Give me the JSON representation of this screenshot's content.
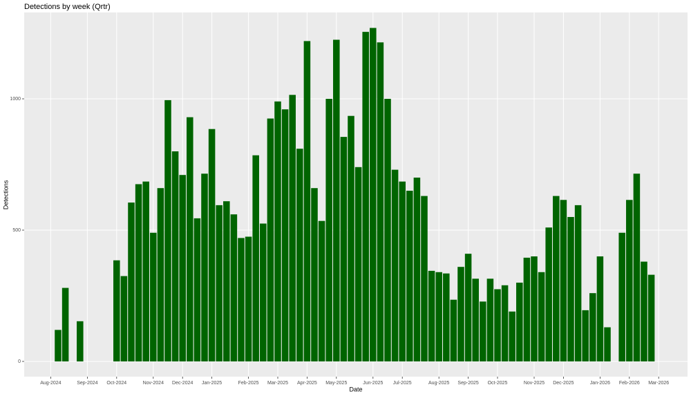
{
  "chart_data": {
    "type": "bar",
    "title": "Detections by week (Qrtr)",
    "x_label": "Date",
    "y_label": "Detections",
    "categories": [
      "Aug-2024",
      null,
      null,
      null,
      null,
      "Sep-2024",
      null,
      null,
      null,
      "Oct-2024",
      null,
      null,
      null,
      null,
      "Nov-2024",
      null,
      null,
      null,
      "Dec-2024",
      null,
      null,
      null,
      "Jan-2025",
      null,
      null,
      null,
      null,
      "Feb-2025",
      null,
      null,
      null,
      "Mar-2025",
      null,
      null,
      null,
      "Apr-2025",
      null,
      null,
      null,
      "May-2025",
      null,
      null,
      null,
      null,
      "Jun-2025",
      null,
      null,
      null,
      "Jul-2025",
      null,
      null,
      null,
      null,
      "Aug-2025",
      null,
      null,
      null,
      "Sep-2025",
      null,
      null,
      null,
      "Oct-2025",
      null,
      null,
      null,
      null,
      "Nov-2025",
      null,
      null,
      null,
      "Dec-2025",
      null,
      null,
      null,
      null,
      "Jan-2026",
      null,
      null,
      null,
      "Feb-2026",
      null,
      null,
      null,
      "Mar-2026"
    ],
    "values": [
      null,
      120,
      280,
      null,
      153,
      null,
      null,
      null,
      null,
      385,
      325,
      605,
      675,
      685,
      490,
      660,
      995,
      800,
      710,
      930,
      545,
      715,
      885,
      595,
      610,
      560,
      470,
      475,
      785,
      525,
      925,
      990,
      960,
      1015,
      810,
      1220,
      660,
      535,
      1000,
      1225,
      855,
      935,
      740,
      1255,
      1270,
      1215,
      1000,
      730,
      685,
      650,
      700,
      630,
      345,
      340,
      335,
      235,
      360,
      410,
      315,
      228,
      315,
      275,
      290,
      190,
      300,
      395,
      400,
      340,
      510,
      630,
      615,
      550,
      595,
      195,
      260,
      400,
      130,
      null,
      490,
      615,
      715,
      380,
      330,
      null
    ],
    "color": "#006400",
    "ylim": [
      -58,
      1329
    ],
    "yticks": [
      0,
      500,
      1000
    ],
    "grid": true
  }
}
